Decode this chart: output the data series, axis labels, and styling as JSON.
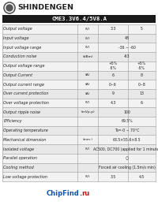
{
  "title": "CME3.3V6.4/5V8.A",
  "brand": "SHINDENGEN",
  "header_bg": "#1a1a1a",
  "header_text_color": "#ffffff",
  "table_rows": [
    [
      "Output voltage",
      "(V)",
      "3.3",
      "5"
    ],
    [
      "Input voltage",
      "(V)",
      "48",
      ""
    ],
    [
      "Input voltage range",
      "(V)",
      "-36 ~ -60",
      ""
    ],
    [
      "Conduction noise",
      "(dBm)",
      "-63",
      ""
    ],
    [
      "Output voltage range",
      "",
      "+5%\n-5%",
      "+5%\n-5%"
    ],
    [
      "Output Current",
      "(A)",
      "6",
      "8"
    ],
    [
      "Output current range",
      "(A)",
      "0~6",
      "0~8"
    ],
    [
      "Over current protection",
      "(A)",
      "9",
      "13"
    ],
    [
      "Over voltage protection",
      "(V)",
      "4.3",
      "6"
    ],
    [
      "Output ripple noise",
      "(mVp-p)",
      "100",
      ""
    ],
    [
      "Efficiency",
      "",
      "69.5%",
      ""
    ],
    [
      "Operating temperature",
      "",
      "Ta=-0 ~ 70°C",
      ""
    ],
    [
      "Mechanical dimension",
      "(mm.)",
      "63.5×55.6×8.5",
      ""
    ],
    [
      "Isolated voltage",
      "(V)",
      "AC500, DC700 (applied for 1 minute)",
      ""
    ],
    [
      "Parallel operation",
      "",
      "○",
      ""
    ],
    [
      "Cooling method",
      "",
      "Forced air cooling (1.5m/s min)",
      ""
    ],
    [
      "Low voltage protection",
      "(V)",
      "3.5",
      "4.5"
    ]
  ],
  "bg_color": "#ffffff",
  "row_bg_even": "#f2f2f2",
  "row_bg_odd": "#e8e8e8",
  "border_color": "#999999",
  "text_color": "#222222",
  "chipfind_blue": "#1155aa",
  "chipfind_red": "#cc1111",
  "chipfind_dot_color": "#444444"
}
